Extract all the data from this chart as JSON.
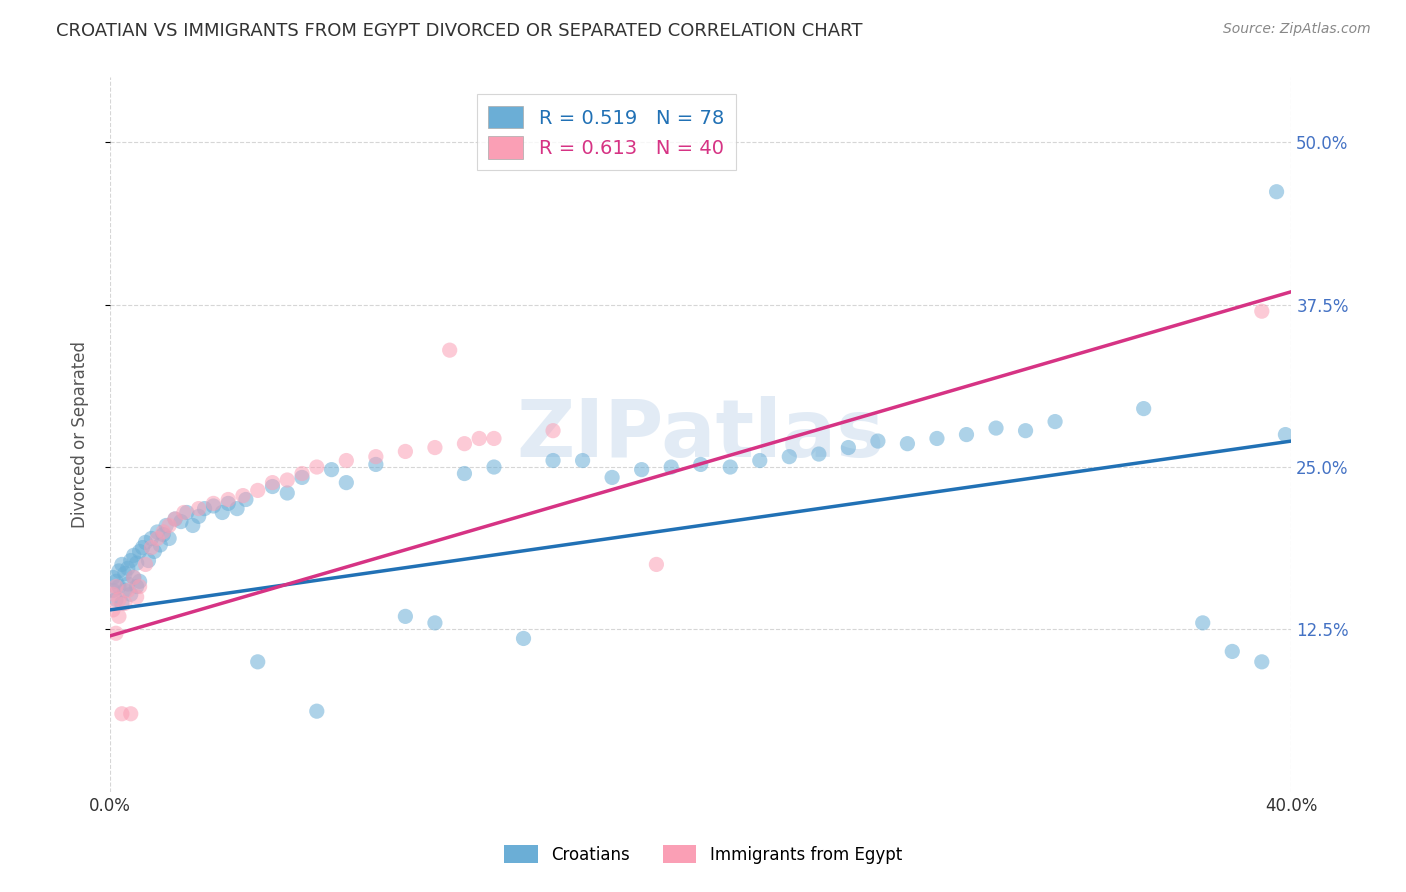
{
  "title": "CROATIAN VS IMMIGRANTS FROM EGYPT DIVORCED OR SEPARATED CORRELATION CHART",
  "source": "Source: ZipAtlas.com",
  "ylabel": "Divorced or Separated",
  "xlim": [
    0.0,
    0.4
  ],
  "ylim": [
    0.0,
    0.55
  ],
  "ytick_positions": [
    0.125,
    0.25,
    0.375,
    0.5
  ],
  "xtick_positions": [
    0.0,
    0.4
  ],
  "watermark": "ZIPatlas",
  "legend_blue_r": "R = 0.519",
  "legend_blue_n": "N = 78",
  "legend_pink_r": "R = 0.613",
  "legend_pink_n": "N = 40",
  "legend_label_blue": "Croatians",
  "legend_label_pink": "Immigrants from Egypt",
  "blue_color": "#6baed6",
  "pink_color": "#fa9fb5",
  "blue_line_color": "#2171b5",
  "pink_line_color": "#d63384",
  "blue_scatter_x": [
    0.001,
    0.001,
    0.002,
    0.002,
    0.003,
    0.003,
    0.004,
    0.004,
    0.005,
    0.005,
    0.006,
    0.006,
    0.007,
    0.007,
    0.008,
    0.008,
    0.009,
    0.009,
    0.01,
    0.01,
    0.011,
    0.012,
    0.013,
    0.014,
    0.015,
    0.016,
    0.017,
    0.018,
    0.019,
    0.02,
    0.022,
    0.024,
    0.026,
    0.028,
    0.03,
    0.032,
    0.035,
    0.038,
    0.04,
    0.043,
    0.046,
    0.05,
    0.055,
    0.06,
    0.065,
    0.07,
    0.075,
    0.08,
    0.09,
    0.1,
    0.11,
    0.12,
    0.13,
    0.14,
    0.15,
    0.16,
    0.17,
    0.18,
    0.19,
    0.2,
    0.21,
    0.22,
    0.23,
    0.24,
    0.25,
    0.26,
    0.27,
    0.28,
    0.29,
    0.3,
    0.31,
    0.32,
    0.35,
    0.37,
    0.38,
    0.39,
    0.395,
    0.398
  ],
  "blue_scatter_y": [
    0.165,
    0.155,
    0.162,
    0.148,
    0.17,
    0.158,
    0.175,
    0.145,
    0.168,
    0.155,
    0.172,
    0.16,
    0.178,
    0.152,
    0.182,
    0.165,
    0.176,
    0.158,
    0.185,
    0.162,
    0.188,
    0.192,
    0.178,
    0.195,
    0.185,
    0.2,
    0.19,
    0.198,
    0.205,
    0.195,
    0.21,
    0.208,
    0.215,
    0.205,
    0.212,
    0.218,
    0.22,
    0.215,
    0.222,
    0.218,
    0.225,
    0.1,
    0.235,
    0.23,
    0.242,
    0.062,
    0.248,
    0.238,
    0.252,
    0.135,
    0.13,
    0.245,
    0.25,
    0.118,
    0.255,
    0.255,
    0.242,
    0.248,
    0.25,
    0.252,
    0.25,
    0.255,
    0.258,
    0.26,
    0.265,
    0.27,
    0.268,
    0.272,
    0.275,
    0.28,
    0.278,
    0.285,
    0.295,
    0.13,
    0.108,
    0.1,
    0.462,
    0.275
  ],
  "pink_scatter_x": [
    0.001,
    0.001,
    0.002,
    0.002,
    0.003,
    0.003,
    0.004,
    0.005,
    0.006,
    0.007,
    0.008,
    0.009,
    0.01,
    0.012,
    0.014,
    0.016,
    0.018,
    0.02,
    0.022,
    0.025,
    0.03,
    0.035,
    0.04,
    0.045,
    0.05,
    0.055,
    0.06,
    0.065,
    0.07,
    0.08,
    0.09,
    0.1,
    0.11,
    0.115,
    0.12,
    0.125,
    0.13,
    0.15,
    0.185,
    0.39
  ],
  "pink_scatter_y": [
    0.152,
    0.14,
    0.158,
    0.122,
    0.148,
    0.135,
    0.06,
    0.145,
    0.155,
    0.06,
    0.165,
    0.15,
    0.158,
    0.175,
    0.188,
    0.195,
    0.2,
    0.205,
    0.21,
    0.215,
    0.218,
    0.222,
    0.225,
    0.228,
    0.232,
    0.238,
    0.24,
    0.245,
    0.25,
    0.255,
    0.258,
    0.262,
    0.265,
    0.34,
    0.268,
    0.272,
    0.272,
    0.278,
    0.175,
    0.37
  ],
  "blue_trendline_x": [
    0.0,
    0.4
  ],
  "blue_trendline_y": [
    0.14,
    0.27
  ],
  "pink_trendline_x": [
    0.0,
    0.4
  ],
  "pink_trendline_y": [
    0.12,
    0.385
  ],
  "background_color": "#ffffff",
  "grid_color": "#cccccc",
  "title_color": "#333333",
  "axis_label_color": "#555555",
  "right_ytick_color": "#4472c4"
}
